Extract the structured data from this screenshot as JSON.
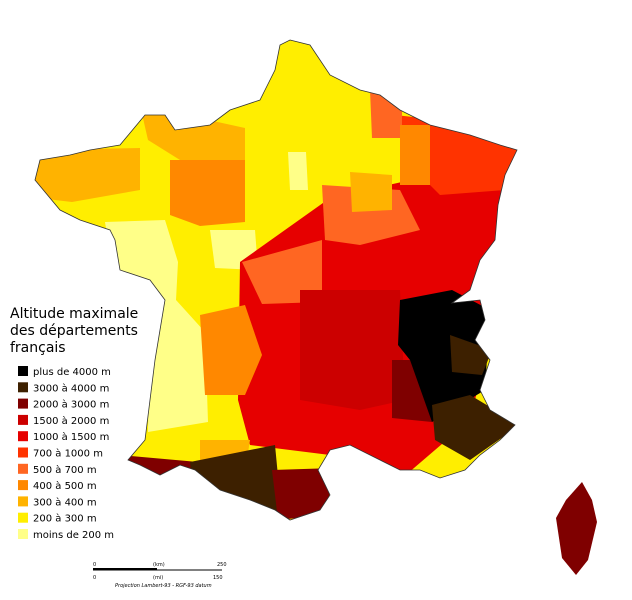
{
  "title_lines": [
    "Altitude maximale",
    "des départements",
    "français"
  ],
  "legend": [
    {
      "label": "plus de 4000 m",
      "color": "#000000"
    },
    {
      "label": "3000 à 4000 m",
      "color": "#3d2000"
    },
    {
      "label": "2000 à 3000 m",
      "color": "#7f0000"
    },
    {
      "label": "1500 à 2000 m",
      "color": "#cc0000"
    },
    {
      "label": "1000 à 1500 m",
      "color": "#e60000"
    },
    {
      "label": "700 à 1000 m",
      "color": "#ff3300"
    },
    {
      "label": "500 à 700 m",
      "color": "#ff6622"
    },
    {
      "label": "400 à 500 m",
      "color": "#ff8800"
    },
    {
      "label": "300 à 400 m",
      "color": "#ffb300"
    },
    {
      "label": "200 à 300 m",
      "color": "#ffee00"
    },
    {
      "label": "moins de 200 m",
      "color": "#ffff88"
    }
  ],
  "scale": {
    "km_zero": "0",
    "km_unit": "(km)",
    "km_max": "250",
    "mi_zero": "0",
    "mi_unit": "(mi)",
    "mi_max": "150",
    "projection": "Projection Lambert-93 - RGF-93 datum"
  }
}
